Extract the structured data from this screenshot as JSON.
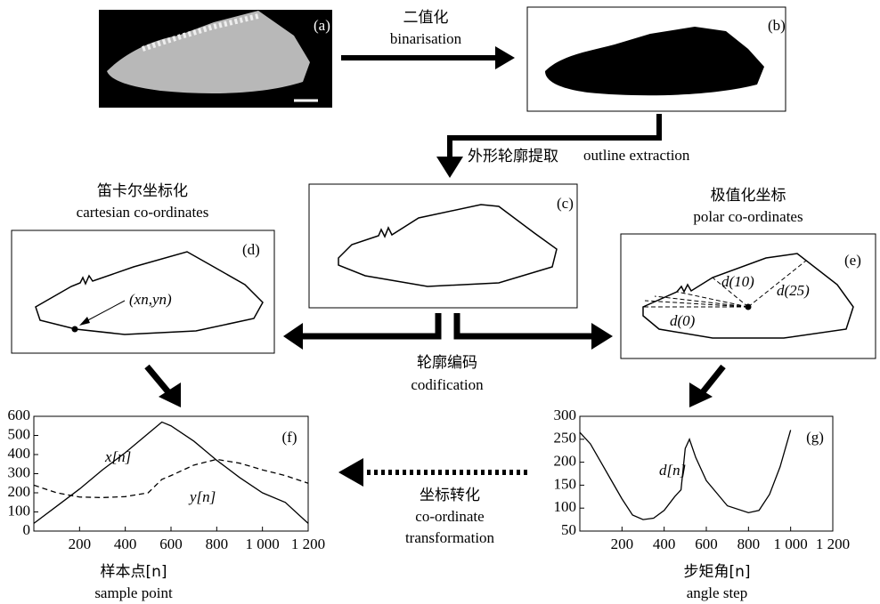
{
  "panels": {
    "a": "(a)",
    "b": "(b)",
    "c": "(c)",
    "d": "(d)",
    "e": "(e)"
  },
  "steps": {
    "binarisation": {
      "zh": "二值化",
      "en": "binarisation"
    },
    "outline_extraction": {
      "zh": "外形轮廓提取",
      "en": "outline extraction"
    },
    "cartesian": {
      "zh": "笛卡尔坐标化",
      "en": "cartesian co-ordinates"
    },
    "polar": {
      "zh": "极值化坐标",
      "en": "polar co-ordinates"
    },
    "codification": {
      "zh": "轮廓编码",
      "en": "codification"
    },
    "transformation": {
      "zh": "坐标转化",
      "en": [
        "co-ordinate",
        "transformation"
      ]
    }
  },
  "annotations": {
    "point": "(xn,yn)",
    "d10": "d(10)",
    "d25": "d(25)",
    "d0": "d(0)"
  },
  "chart_data": [
    {
      "type": "line",
      "label": "(f)",
      "xlabel": "样本点[n]",
      "xlabel_sub": "sample point",
      "x": [
        0,
        100,
        200,
        300,
        400,
        500,
        560,
        600,
        700,
        800,
        900,
        1000,
        1100,
        1200
      ],
      "series": [
        {
          "name": "x[n]",
          "color": "#000000",
          "style": "solid",
          "values": [
            40,
            130,
            220,
            320,
            410,
            510,
            570,
            550,
            470,
            370,
            280,
            200,
            150,
            40
          ]
        },
        {
          "name": "y[n]",
          "color": "#000000",
          "style": "dashed",
          "values": [
            240,
            200,
            178,
            175,
            180,
            200,
            270,
            290,
            345,
            375,
            355,
            320,
            290,
            250
          ]
        }
      ],
      "xlim": [
        0,
        1200
      ],
      "ylim": [
        0,
        600
      ],
      "xticks": [
        200,
        400,
        600,
        800,
        {
          "value": 1000,
          "label": "1 000"
        },
        {
          "value": 1200,
          "label": "1 200"
        }
      ],
      "yticks": [
        0,
        100,
        200,
        300,
        400,
        500,
        600
      ]
    },
    {
      "type": "line",
      "label": "(g)",
      "xlabel": "步矩角[n]",
      "xlabel_sub": "angle step",
      "x": [
        0,
        50,
        100,
        150,
        200,
        250,
        300,
        350,
        400,
        450,
        480,
        500,
        520,
        550,
        600,
        700,
        800,
        850,
        900,
        950,
        1000
      ],
      "series": [
        {
          "name": "d[n]",
          "color": "#000000",
          "style": "solid",
          "values": [
            265,
            240,
            200,
            160,
            120,
            85,
            75,
            78,
            95,
            125,
            140,
            230,
            250,
            210,
            160,
            105,
            90,
            95,
            130,
            190,
            270
          ]
        }
      ],
      "xlim": [
        0,
        1200
      ],
      "ylim": [
        50,
        300
      ],
      "xticks": [
        200,
        400,
        600,
        800,
        {
          "value": 1000,
          "label": "1 000"
        },
        {
          "value": 1200,
          "label": "1 200"
        }
      ],
      "yticks": [
        50,
        100,
        150,
        200,
        250,
        300
      ]
    }
  ]
}
